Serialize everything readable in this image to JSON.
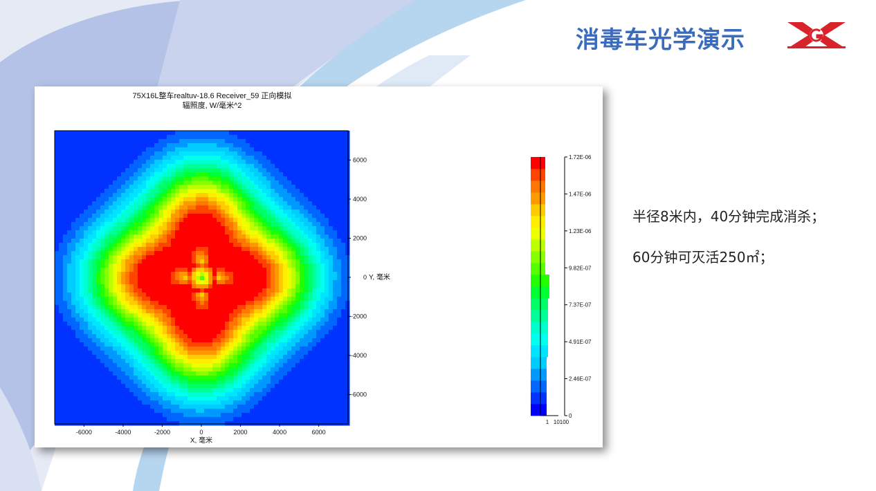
{
  "slide": {
    "title": "消毒车光学演示",
    "logo_icon": "company-logo-x",
    "accent_color": "#3a6bbf",
    "notes": [
      "半径8米内，40分钟完成消杀；",
      "60分钟可灭活250㎡；"
    ]
  },
  "chart_data": {
    "type": "heatmap",
    "title": "75X16L整车realtuv-18.6 Receiver_59 正向模拟",
    "subtitle": "辐照度, W/毫米^2",
    "xlabel": "X, 毫米",
    "ylabel": "Y, 毫米",
    "xlim": [
      -7500,
      7500
    ],
    "ylim": [
      -7500,
      7500
    ],
    "x_ticks": [
      -6000,
      -4000,
      -2000,
      0,
      2000,
      4000,
      6000
    ],
    "y_ticks": [
      6000,
      4000,
      2000,
      0,
      -2000,
      -4000,
      -6000
    ],
    "colorbar": {
      "min": 0,
      "max": 1.72e-06,
      "tick_labels": [
        "1.72E-06",
        "1.47E-06",
        "1.23E-06",
        "9.82E-07",
        "7.37E-07",
        "4.91E-07",
        "2.46E-07",
        "0"
      ],
      "histogram_axis_labels": [
        "1",
        "10100"
      ],
      "colors": [
        "#0000ff",
        "#0033ff",
        "#0066ff",
        "#0099ff",
        "#00ccff",
        "#00e5ff",
        "#00ffee",
        "#00ffcc",
        "#00ff99",
        "#00ff66",
        "#00ff33",
        "#22ff00",
        "#55ff00",
        "#88ff00",
        "#bbff00",
        "#eeff00",
        "#ffee00",
        "#ffcc00",
        "#ff9900",
        "#ff7700",
        "#ff4400",
        "#ff0000"
      ],
      "histogram_fraction": [
        0.15,
        0.15,
        0.15,
        0.15,
        0.15,
        0.2,
        0.2,
        0.2,
        0.2,
        0.2,
        0.25,
        0.25,
        0.1,
        0.1,
        0.1,
        0.1,
        0.1,
        0.1,
        0.1,
        0.1,
        0.1,
        0.1
      ],
      "histogram_fraction_order": "bottom-to-top"
    }
  }
}
